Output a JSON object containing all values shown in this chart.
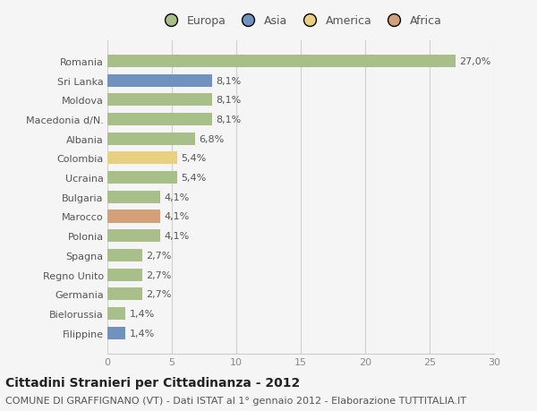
{
  "countries": [
    "Romania",
    "Sri Lanka",
    "Moldova",
    "Macedonia d/N.",
    "Albania",
    "Colombia",
    "Ucraina",
    "Bulgaria",
    "Marocco",
    "Polonia",
    "Spagna",
    "Regno Unito",
    "Germania",
    "Bielorussia",
    "Filippine"
  ],
  "values": [
    27.0,
    8.1,
    8.1,
    8.1,
    6.8,
    5.4,
    5.4,
    4.1,
    4.1,
    4.1,
    2.7,
    2.7,
    2.7,
    1.4,
    1.4
  ],
  "labels": [
    "27,0%",
    "8,1%",
    "8,1%",
    "8,1%",
    "6,8%",
    "5,4%",
    "5,4%",
    "4,1%",
    "4,1%",
    "4,1%",
    "2,7%",
    "2,7%",
    "2,7%",
    "1,4%",
    "1,4%"
  ],
  "colors": [
    "#a8bf8a",
    "#7092be",
    "#a8bf8a",
    "#a8bf8a",
    "#a8bf8a",
    "#e8d080",
    "#a8bf8a",
    "#a8bf8a",
    "#d4a07a",
    "#a8bf8a",
    "#a8bf8a",
    "#a8bf8a",
    "#a8bf8a",
    "#a8bf8a",
    "#7092be"
  ],
  "legend_labels": [
    "Europa",
    "Asia",
    "America",
    "Africa"
  ],
  "legend_colors": [
    "#a8bf8a",
    "#7092be",
    "#e8d080",
    "#d4a07a"
  ],
  "xlim": [
    0,
    30
  ],
  "xticks": [
    0,
    5,
    10,
    15,
    20,
    25,
    30
  ],
  "title": "Cittadini Stranieri per Cittadinanza - 2012",
  "subtitle": "COMUNE DI GRAFFIGNANO (VT) - Dati ISTAT al 1° gennaio 2012 - Elaborazione TUTTITALIA.IT",
  "bg_color": "#f5f5f5",
  "bar_height": 0.65,
  "title_fontsize": 10,
  "subtitle_fontsize": 8,
  "label_fontsize": 8,
  "tick_fontsize": 8,
  "legend_fontsize": 9
}
